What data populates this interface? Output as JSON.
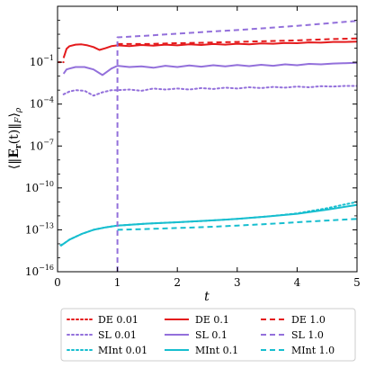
{
  "chart_data": {
    "type": "line",
    "xlabel": "t",
    "ylabel": "⟨‖E_r(t)‖_F⟩_ρ",
    "ylabel_parts": {
      "open": "⟨‖",
      "bold": "E",
      "sub_r": "r",
      "mid": "(t)‖",
      "sub_F": "F",
      "close": "⟩",
      "sub_rho": "ρ"
    },
    "xlim": [
      0,
      5
    ],
    "ylim": [
      1e-16,
      1000.0
    ],
    "yscale": "log",
    "x_ticks": [
      0,
      1,
      2,
      3,
      4,
      5
    ],
    "x_tick_labels": [
      "0",
      "1",
      "2",
      "3",
      "4",
      "5"
    ],
    "y_ticks": [
      1e-16,
      1e-13,
      1e-10,
      1e-07,
      0.0001,
      0.1
    ],
    "y_tick_labels": [
      {
        "base": "10",
        "exp": "−16"
      },
      {
        "base": "10",
        "exp": "−13"
      },
      {
        "base": "10",
        "exp": "−10"
      },
      {
        "base": "10",
        "exp": "−7"
      },
      {
        "base": "10",
        "exp": "−4"
      },
      {
        "base": "10",
        "exp": "−1"
      }
    ],
    "grid": false,
    "legend_position": "below",
    "colors": {
      "DE": "#e41a1c",
      "SL": "#9370db",
      "MInt": "#17becf"
    },
    "series": [
      {
        "name": "DE 0.01",
        "color": "#e41a1c",
        "dash": "dotted",
        "x": [
          0.02,
          0.05,
          0.08,
          0.1
        ],
        "y": [
          0.1,
          0.1,
          0.1,
          0.1
        ]
      },
      {
        "name": "SL 0.01",
        "color": "#9370db",
        "dash": "dotted",
        "x": [
          0.1,
          0.2,
          0.3,
          0.45,
          0.6,
          0.75,
          0.9,
          1.0,
          1.2,
          1.4,
          1.6,
          1.8,
          2.0,
          2.2,
          2.4,
          2.6,
          2.8,
          3.0,
          3.2,
          3.4,
          3.6,
          3.8,
          4.0,
          4.2,
          4.4,
          4.6,
          4.8,
          5.0
        ],
        "y": [
          0.0005,
          0.0008,
          0.001,
          0.0009,
          0.0004,
          0.0007,
          0.001,
          0.001,
          0.0011,
          0.0009,
          0.0013,
          0.0011,
          0.0013,
          0.0011,
          0.0014,
          0.0012,
          0.0015,
          0.0013,
          0.0016,
          0.0014,
          0.0017,
          0.0015,
          0.0018,
          0.0016,
          0.0019,
          0.0018,
          0.002,
          0.002
        ]
      },
      {
        "name": "MInt 0.01",
        "color": "#17becf",
        "dash": "dotted",
        "x": [
          0.05,
          0.1,
          0.2,
          0.4,
          0.6,
          0.8,
          1.0,
          1.5,
          2.0,
          2.5,
          3.0,
          3.5,
          4.0,
          4.5,
          5.0
        ],
        "y": [
          8e-15,
          1e-14,
          2e-14,
          5e-14,
          1e-13,
          1.5e-13,
          2e-13,
          2.8e-13,
          3.5e-13,
          4.5e-13,
          6e-13,
          9e-13,
          1.5e-12,
          3.5e-12,
          1e-11
        ]
      },
      {
        "name": "DE 0.1",
        "color": "#e41a1c",
        "dash": "solid",
        "x": [
          0.1,
          0.15,
          0.2,
          0.3,
          0.4,
          0.5,
          0.6,
          0.7,
          0.8,
          0.9,
          1.0,
          1.2,
          1.4,
          1.6,
          1.8,
          2.0,
          2.2,
          2.4,
          2.6,
          2.8,
          3.0,
          3.2,
          3.4,
          3.6,
          3.8,
          4.0,
          4.2,
          4.4,
          4.6,
          4.8,
          5.0
        ],
        "y": [
          0.2,
          0.9,
          1.4,
          1.8,
          1.9,
          1.6,
          1.2,
          0.75,
          1.0,
          1.4,
          1.6,
          1.4,
          1.7,
          1.5,
          1.8,
          1.6,
          1.9,
          1.7,
          2.0,
          1.8,
          2.1,
          1.9,
          2.2,
          2.1,
          2.4,
          2.3,
          2.6,
          2.5,
          2.8,
          2.8,
          3.0
        ]
      },
      {
        "name": "SL 0.1",
        "color": "#9370db",
        "dash": "solid",
        "x": [
          0.1,
          0.15,
          0.2,
          0.3,
          0.45,
          0.6,
          0.75,
          0.9,
          1.0,
          1.2,
          1.4,
          1.6,
          1.8,
          2.0,
          2.2,
          2.4,
          2.6,
          2.8,
          3.0,
          3.2,
          3.4,
          3.6,
          3.8,
          4.0,
          4.2,
          4.4,
          4.6,
          4.8,
          5.0
        ],
        "y": [
          0.015,
          0.03,
          0.035,
          0.045,
          0.045,
          0.03,
          0.012,
          0.035,
          0.055,
          0.045,
          0.05,
          0.04,
          0.055,
          0.045,
          0.058,
          0.048,
          0.06,
          0.05,
          0.062,
          0.052,
          0.065,
          0.055,
          0.07,
          0.06,
          0.075,
          0.07,
          0.08,
          0.085,
          0.09
        ]
      },
      {
        "name": "MInt 0.1",
        "color": "#17becf",
        "dash": "solid",
        "x": [
          0.05,
          0.1,
          0.2,
          0.4,
          0.6,
          0.8,
          1.0,
          1.5,
          2.0,
          2.5,
          3.0,
          3.5,
          4.0,
          4.5,
          5.0
        ],
        "y": [
          7e-15,
          1e-14,
          2e-14,
          5e-14,
          1e-13,
          1.5e-13,
          2e-13,
          2.8e-13,
          3.5e-13,
          4.5e-13,
          6e-13,
          9e-13,
          1.4e-12,
          2.8e-12,
          6e-12
        ]
      },
      {
        "name": "DE 1.0",
        "color": "#e41a1c",
        "dash": "dashed",
        "x": [
          1.0,
          1.5,
          2.0,
          2.5,
          3.0,
          3.5,
          4.0,
          4.5,
          5.0
        ],
        "y": [
          2.0,
          2.0,
          2.3,
          2.5,
          2.8,
          3.2,
          3.6,
          4.4,
          5.0
        ]
      },
      {
        "name": "SL 1.0",
        "color": "#9370db",
        "dash": "dashed",
        "x": [
          1.0,
          1.0,
          1.5,
          2.0,
          2.5,
          3.0,
          3.5,
          4.0,
          4.5,
          5.0
        ],
        "y": [
          1e-16,
          6.0,
          8.0,
          11.0,
          15.0,
          20.0,
          28.0,
          40.0,
          60.0,
          90.0
        ]
      },
      {
        "name": "MInt 1.0",
        "color": "#17becf",
        "dash": "dashed",
        "x": [
          1.0,
          1.5,
          2.0,
          2.5,
          3.0,
          3.5,
          4.0,
          4.5,
          5.0
        ],
        "y": [
          1e-13,
          1.15e-13,
          1.35e-13,
          1.6e-13,
          2e-13,
          2.6e-13,
          3.5e-13,
          4.6e-13,
          6e-13
        ]
      }
    ]
  }
}
